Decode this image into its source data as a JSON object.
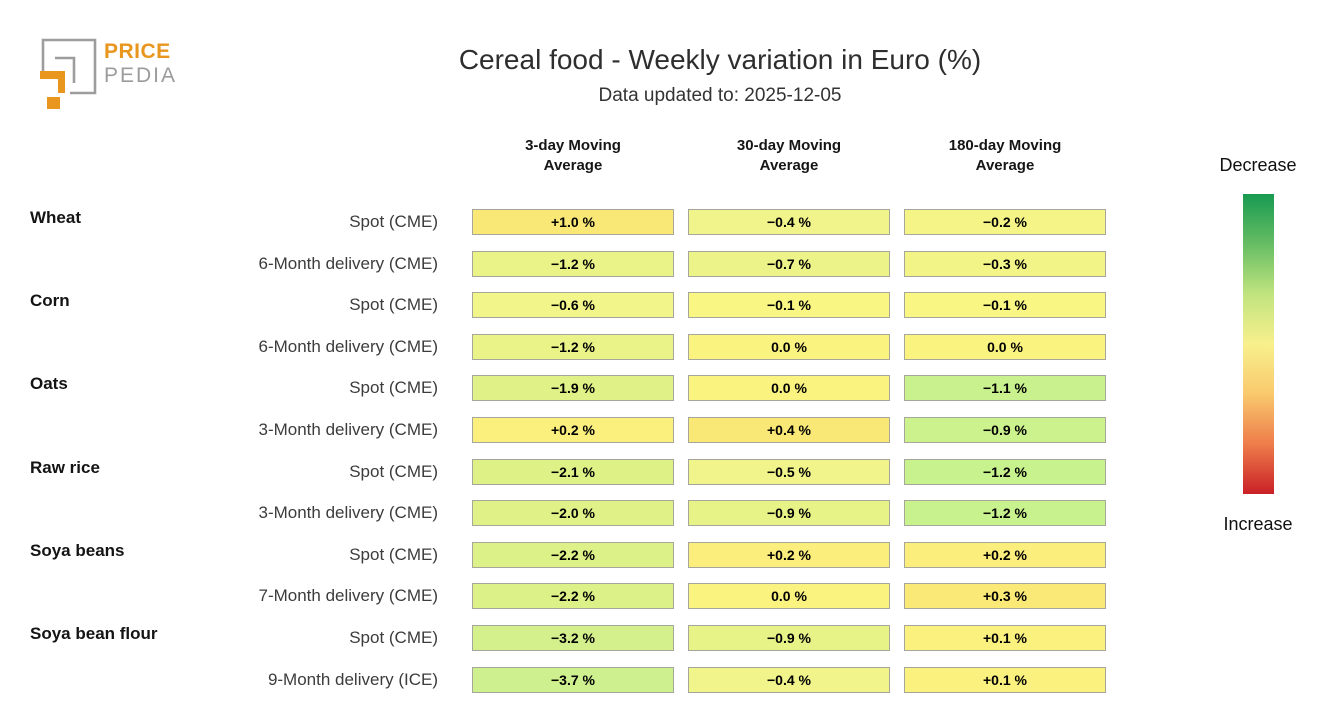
{
  "logo": {
    "brand_top": "PRICE",
    "brand_bottom": "PEDIA",
    "orange": "#E8961E",
    "gray": "#9d9d9d"
  },
  "header": {
    "title": "Cereal food - Weekly variation in Euro (%)",
    "subtitle": "Data updated to: 2025-12-05"
  },
  "legend": {
    "top_label": "Decrease",
    "bottom_label": "Increase",
    "gradient_top_to_bottom": [
      "#189a51",
      "#66bd63",
      "#c0e47f",
      "#f8f08c",
      "#f9c96d",
      "#ee7d4a",
      "#c92026"
    ]
  },
  "chart_data": {
    "type": "heatmap",
    "title": "Cereal food - Weekly variation in Euro (%)",
    "subtitle": "Data updated to: 2025-12-05",
    "unit": "%",
    "columns": [
      "3-day Moving Average",
      "30-day Moving Average",
      "180-day Moving Average"
    ],
    "legend": {
      "top": "Decrease",
      "bottom": "Increase"
    },
    "rows": [
      {
        "group": "Wheat",
        "label": "Spot (CME)",
        "values": [
          1.0,
          -0.4,
          -0.2
        ],
        "display": [
          "+1.0 %",
          "−0.4 %",
          "−0.2 %"
        ],
        "colors": [
          "#f9e876",
          "#f1f48a",
          "#f5f587"
        ]
      },
      {
        "group": "",
        "label": "6-Month delivery (CME)",
        "values": [
          -1.2,
          -0.7,
          -0.3
        ],
        "display": [
          "−1.2 %",
          "−0.7 %",
          "−0.3 %"
        ],
        "colors": [
          "#e9f388",
          "#ecf388",
          "#f3f488"
        ]
      },
      {
        "group": "Corn",
        "label": "Spot (CME)",
        "values": [
          -0.6,
          -0.1,
          -0.1
        ],
        "display": [
          "−0.6 %",
          "−0.1 %",
          "−0.1 %"
        ],
        "colors": [
          "#f2f58a",
          "#f9f684",
          "#f9f684"
        ]
      },
      {
        "group": "",
        "label": "6-Month delivery (CME)",
        "values": [
          -1.2,
          0.0,
          0.0
        ],
        "display": [
          "−1.2 %",
          "0.0 %",
          "0.0 %"
        ],
        "colors": [
          "#e9f388",
          "#fbf380",
          "#fbf380"
        ]
      },
      {
        "group": "Oats",
        "label": "Spot (CME)",
        "values": [
          -1.9,
          0.0,
          -1.1
        ],
        "display": [
          "−1.9 %",
          "0.0 %",
          "−1.1 %"
        ],
        "colors": [
          "#e0f287",
          "#fbf380",
          "#c9f28e"
        ]
      },
      {
        "group": "",
        "label": "3-Month delivery (CME)",
        "values": [
          0.2,
          0.4,
          -0.9
        ],
        "display": [
          "+0.2 %",
          "+0.4 %",
          "−0.9 %"
        ],
        "colors": [
          "#fbf07e",
          "#f9e875",
          "#ccf28e"
        ]
      },
      {
        "group": "Raw rice",
        "label": "Spot (CME)",
        "values": [
          -2.1,
          -0.5,
          -1.2
        ],
        "display": [
          "−2.1 %",
          "−0.5 %",
          "−1.2 %"
        ],
        "colors": [
          "#def187",
          "#f0f48a",
          "#c7f28e"
        ]
      },
      {
        "group": "",
        "label": "3-Month delivery (CME)",
        "values": [
          -2.0,
          -0.9,
          -1.2
        ],
        "display": [
          "−2.0 %",
          "−0.9 %",
          "−1.2 %"
        ],
        "colors": [
          "#dff187",
          "#e7f287",
          "#c7f28e"
        ]
      },
      {
        "group": "Soya beans",
        "label": "Spot (CME)",
        "values": [
          -2.2,
          0.2,
          0.2
        ],
        "display": [
          "−2.2 %",
          "+0.2 %",
          "+0.2 %"
        ],
        "colors": [
          "#dcf188",
          "#fbee7c",
          "#fbee7c"
        ]
      },
      {
        "group": "",
        "label": "7-Month delivery (CME)",
        "values": [
          -2.2,
          0.0,
          0.3
        ],
        "display": [
          "−2.2 %",
          "0.0 %",
          "+0.3 %"
        ],
        "colors": [
          "#dcf188",
          "#fbf380",
          "#fae977"
        ]
      },
      {
        "group": "Soya bean flour",
        "label": "Spot (CME)",
        "values": [
          -3.2,
          -0.9,
          0.1
        ],
        "display": [
          "−3.2 %",
          "−0.9 %",
          "+0.1 %"
        ],
        "colors": [
          "#d4f08c",
          "#e7f287",
          "#fbf17f"
        ]
      },
      {
        "group": "",
        "label": "9-Month delivery (ICE)",
        "values": [
          -3.7,
          -0.4,
          0.1
        ],
        "display": [
          "−3.7 %",
          "−0.4 %",
          "+0.1 %"
        ],
        "colors": [
          "#cff08e",
          "#f1f48a",
          "#fbf17f"
        ]
      }
    ]
  }
}
